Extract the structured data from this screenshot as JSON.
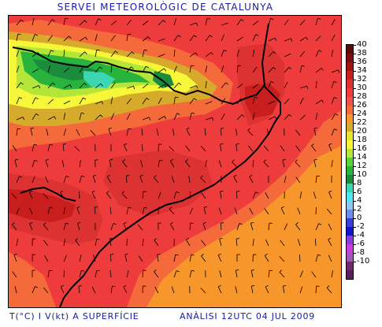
{
  "header": {
    "title": "SERVEI METEOROLÒGIC DE CATALUNYA"
  },
  "footer": {
    "variable": "T(°C) I V(kt) A SUPERFÍCIE",
    "analysis": "ANÀLISI 12UTC 04 JUL 2009"
  },
  "legend": {
    "items": [
      {
        "label": "40",
        "color": "#5a0c0c"
      },
      {
        "label": "38",
        "color": "#7a1010"
      },
      {
        "label": "36",
        "color": "#a01414"
      },
      {
        "label": "34",
        "color": "#c81e1e"
      },
      {
        "label": "32",
        "color": "#dc3232"
      },
      {
        "label": "30",
        "color": "#ee3c3c"
      },
      {
        "label": "28",
        "color": "#f05050"
      },
      {
        "label": "26",
        "color": "#f56a3a"
      },
      {
        "label": "24",
        "color": "#f7962a"
      },
      {
        "label": "22",
        "color": "#d6aa2a"
      },
      {
        "label": "20",
        "color": "#e6e62a"
      },
      {
        "label": "18",
        "color": "#f7f73a"
      },
      {
        "label": "16",
        "color": "#b4e63a"
      },
      {
        "label": "14",
        "color": "#5ad23a"
      },
      {
        "label": "12",
        "color": "#28b43c"
      },
      {
        "label": "10",
        "color": "#1a8c3c"
      },
      {
        "label": "8",
        "color": "#3cd6b4"
      },
      {
        "label": "6",
        "color": "#50e6f0"
      },
      {
        "label": "4",
        "color": "#8cc8f0"
      },
      {
        "label": "2",
        "color": "#6e8cf0"
      },
      {
        "label": "0",
        "color": "#3c3cdc"
      },
      {
        "label": "-2",
        "color": "#1414c8"
      },
      {
        "label": "-4",
        "color": "#8c3cdc"
      },
      {
        "label": "-6",
        "color": "#c83cdc"
      },
      {
        "label": "-8",
        "color": "#a05ab4"
      },
      {
        "label": "-10",
        "color": "#6e286e"
      },
      {
        "label": "",
        "color": "#5a1e5a"
      }
    ]
  },
  "map": {
    "field_colors": {
      "sea_orange": "#f7962a",
      "warm_red": "#ee3c3c",
      "hot_red": "#dc3232",
      "very_hot": "#c81e1e",
      "hottest": "#a01414",
      "mid": "#f56a3a",
      "cool_yellow": "#f7f73a",
      "olive": "#d6aa2a",
      "green": "#28b43c",
      "dark_green": "#1a8c3c",
      "cyan": "#3cd6b4"
    },
    "wind_barbs": "wind-barb-icons",
    "coastline": "coastline-line",
    "border": "border-line"
  }
}
